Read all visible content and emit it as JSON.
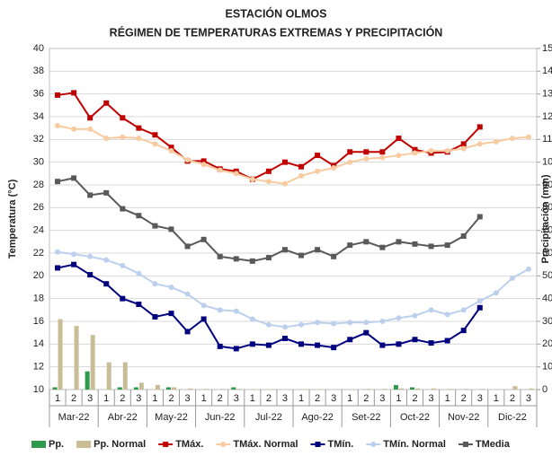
{
  "chart_data": {
    "type": "combo",
    "title": "ESTACIÓN OLMOS",
    "subtitle": "RÉGIMEN DE TEMPERATURAS EXTREMAS Y PRECIPITACIÓN",
    "y_label": "Temperatura (°C)",
    "y2_label": "Precipitación (mm)",
    "categories": [
      "1",
      "2",
      "3",
      "1",
      "2",
      "3",
      "1",
      "2",
      "3",
      "1",
      "2",
      "3",
      "1",
      "2",
      "3",
      "1",
      "2",
      "3",
      "1",
      "2",
      "3",
      "1",
      "2",
      "3",
      "1",
      "2",
      "3",
      "1",
      "2",
      "3"
    ],
    "months": [
      "Mar-22",
      "Abr-22",
      "May-22",
      "Jun-22",
      "Jul-22",
      "Ago-22",
      "Set-22",
      "Oct-22",
      "Nov-22",
      "Dic-22"
    ],
    "ylim": [
      10,
      40
    ],
    "yticks": [
      10,
      12,
      14,
      16,
      18,
      20,
      22,
      24,
      26,
      28,
      30,
      32,
      34,
      36,
      38,
      40
    ],
    "y2lim": [
      0,
      150
    ],
    "y2ticks": [
      0,
      10,
      20,
      30,
      40,
      50,
      60,
      70,
      80,
      90,
      100,
      110,
      120,
      130,
      140,
      150
    ],
    "grid": true,
    "series": [
      {
        "name": "Pp.",
        "type": "bar",
        "axis": "y2",
        "color": "#2e9a4b",
        "values": [
          1,
          0,
          8,
          0,
          1,
          1,
          0,
          1,
          0,
          0,
          0,
          1,
          0,
          0,
          0,
          0,
          0,
          0,
          0,
          0,
          0,
          2,
          1,
          0,
          0,
          0,
          0,
          null,
          null,
          null
        ]
      },
      {
        "name": "Pp. Normal",
        "type": "bar",
        "axis": "y2",
        "color": "#c8bd96",
        "values": [
          31,
          28,
          24,
          12,
          12,
          3,
          2,
          1,
          0.5,
          0.3,
          0.3,
          0.3,
          0.2,
          0.2,
          0.2,
          0.2,
          0.2,
          0.2,
          0.2,
          0.3,
          0.3,
          0.5,
          0.5,
          0.5,
          0.3,
          0.3,
          0.3,
          0,
          1.5,
          0.5
        ]
      },
      {
        "name": "TMáx.",
        "type": "line",
        "marker": "square",
        "color": "#c00000",
        "values": [
          35.9,
          36.1,
          33.9,
          35.2,
          33.9,
          33.0,
          32.4,
          31.3,
          30.1,
          30.1,
          29.4,
          29.2,
          28.5,
          29.2,
          30.0,
          29.6,
          30.6,
          29.7,
          30.9,
          30.9,
          30.9,
          32.1,
          31.1,
          30.8,
          30.9,
          31.6,
          33.1,
          null,
          null,
          null
        ]
      },
      {
        "name": "TMáx. Normal",
        "type": "line",
        "marker": "circle",
        "color": "#f8cba0",
        "values": [
          33.2,
          32.9,
          32.9,
          32.1,
          32.2,
          32.1,
          31.6,
          31.0,
          30.2,
          29.8,
          29.3,
          29.0,
          28.5,
          28.3,
          28.1,
          28.8,
          29.2,
          29.5,
          30.0,
          30.3,
          30.4,
          30.6,
          30.8,
          31.0,
          31.0,
          31.2,
          31.6,
          31.8,
          32.1,
          32.2
        ]
      },
      {
        "name": "TMín.",
        "type": "line",
        "marker": "square",
        "color": "#00007f",
        "values": [
          20.7,
          21.0,
          20.1,
          19.3,
          18.0,
          17.5,
          16.4,
          16.7,
          15.1,
          16.2,
          13.8,
          13.6,
          14.0,
          13.9,
          14.5,
          14.0,
          13.9,
          13.7,
          14.4,
          15.0,
          13.9,
          14.0,
          14.4,
          14.1,
          14.3,
          15.2,
          17.2,
          null,
          null,
          null
        ]
      },
      {
        "name": "TMín. Normal",
        "type": "line",
        "marker": "circle",
        "color": "#bcd0ee",
        "values": [
          22.1,
          21.9,
          21.7,
          21.4,
          20.9,
          20.2,
          19.3,
          19.0,
          18.4,
          17.4,
          17.0,
          16.9,
          16.2,
          15.7,
          15.5,
          15.7,
          15.9,
          15.8,
          15.9,
          15.9,
          16.0,
          16.3,
          16.5,
          17.0,
          16.6,
          17.0,
          17.8,
          18.5,
          19.8,
          20.6
        ]
      },
      {
        "name": "TMedia",
        "type": "line",
        "marker": "square",
        "color": "#595959",
        "values": [
          28.3,
          28.6,
          27.1,
          27.3,
          25.9,
          25.3,
          24.4,
          24.1,
          22.6,
          23.2,
          21.7,
          21.5,
          21.3,
          21.6,
          22.3,
          21.8,
          22.3,
          21.7,
          22.7,
          23.0,
          22.5,
          23.0,
          22.8,
          22.6,
          22.7,
          23.5,
          25.2,
          null,
          null,
          null
        ]
      }
    ]
  }
}
